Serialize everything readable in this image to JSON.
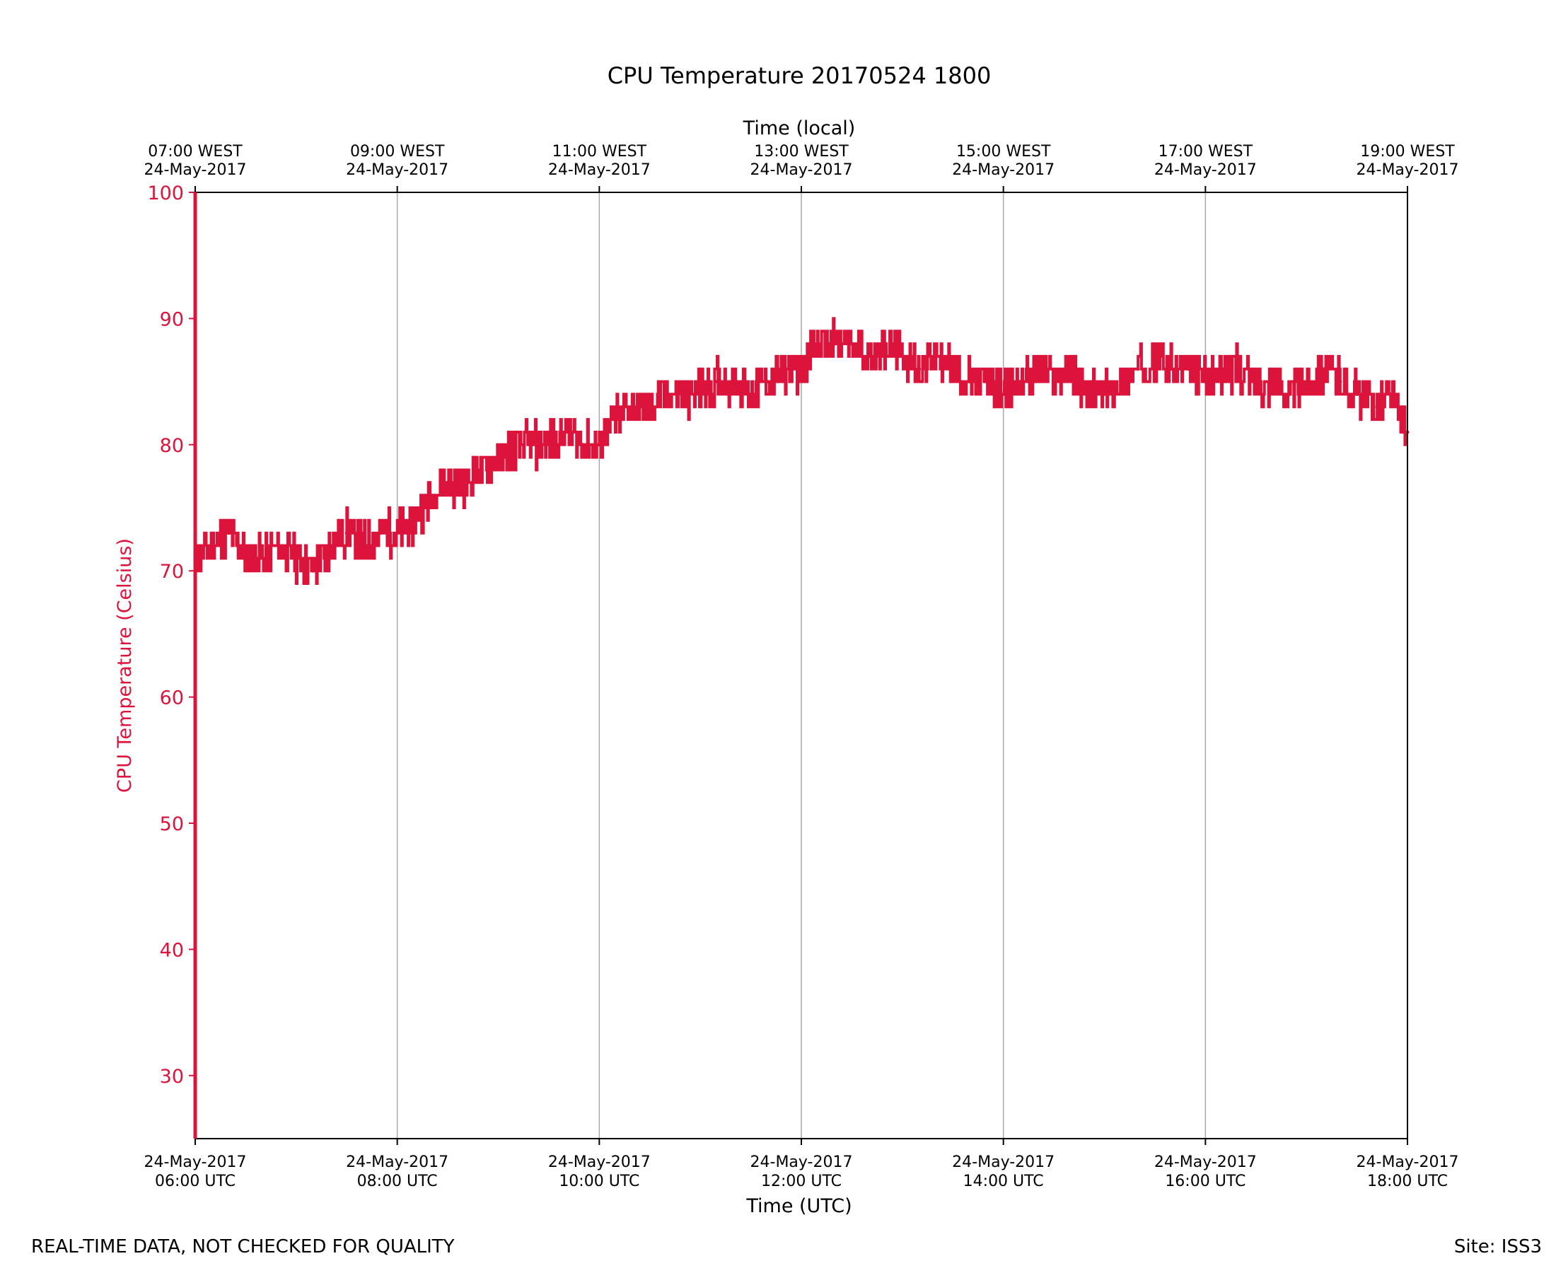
{
  "chart_data": {
    "type": "line",
    "title": "CPU Temperature 20170524 1800",
    "ylabel": "CPU Temperature (Celsius)",
    "xlabel": "Time (UTC)",
    "x2label": "Time (local)",
    "ylim": [
      25,
      100
    ],
    "xlim": [
      "2017-05-24 06:00",
      "2017-05-24 18:00"
    ],
    "yticks": [
      30,
      40,
      50,
      60,
      70,
      80,
      90,
      100
    ],
    "grid": "vertical",
    "xticks_bottom": [
      {
        "date": "24-May-2017",
        "time": "06:00 UTC"
      },
      {
        "date": "24-May-2017",
        "time": "08:00 UTC"
      },
      {
        "date": "24-May-2017",
        "time": "10:00 UTC"
      },
      {
        "date": "24-May-2017",
        "time": "12:00 UTC"
      },
      {
        "date": "24-May-2017",
        "time": "14:00 UTC"
      },
      {
        "date": "24-May-2017",
        "time": "16:00 UTC"
      },
      {
        "date": "24-May-2017",
        "time": "18:00 UTC"
      }
    ],
    "xticks_top": [
      {
        "time": "07:00 WEST",
        "date": "24-May-2017"
      },
      {
        "time": "09:00 WEST",
        "date": "24-May-2017"
      },
      {
        "time": "11:00 WEST",
        "date": "24-May-2017"
      },
      {
        "time": "13:00 WEST",
        "date": "24-May-2017"
      },
      {
        "time": "15:00 WEST",
        "date": "24-May-2017"
      },
      {
        "time": "17:00 WEST",
        "date": "24-May-2017"
      },
      {
        "time": "19:00 WEST",
        "date": "24-May-2017"
      }
    ],
    "series": [
      {
        "color": "#dc143c",
        "x": [
          "06:00",
          "06:10",
          "06:20",
          "06:30",
          "06:40",
          "06:50",
          "07:00",
          "07:10",
          "07:20",
          "07:30",
          "07:40",
          "07:50",
          "08:00",
          "08:10",
          "08:20",
          "08:30",
          "08:40",
          "08:50",
          "09:00",
          "09:10",
          "09:20",
          "09:30",
          "09:40",
          "09:50",
          "10:00",
          "10:10",
          "10:20",
          "10:30",
          "10:40",
          "10:50",
          "11:00",
          "11:10",
          "11:20",
          "11:30",
          "11:40",
          "11:50",
          "12:00",
          "12:10",
          "12:20",
          "12:30",
          "12:40",
          "12:50",
          "13:00",
          "13:10",
          "13:20",
          "13:30",
          "13:40",
          "13:50",
          "14:00",
          "14:10",
          "14:20",
          "14:30",
          "14:40",
          "14:50",
          "15:00",
          "15:10",
          "15:20",
          "15:30",
          "15:40",
          "15:50",
          "16:00",
          "16:10",
          "16:20",
          "16:30",
          "16:40",
          "16:50",
          "17:00",
          "17:10",
          "17:20",
          "17:30",
          "17:40",
          "17:50",
          "18:00"
        ],
        "values": [
          71,
          72,
          73,
          71,
          71,
          72,
          71,
          70,
          72,
          73,
          72,
          73,
          73,
          74,
          76,
          77,
          77,
          78,
          79,
          80,
          80,
          80,
          81,
          80,
          80,
          82,
          83,
          83,
          84,
          84,
          84,
          85,
          85,
          84,
          85,
          86,
          86,
          88,
          88,
          88,
          87,
          88,
          87,
          86,
          87,
          86,
          85,
          85,
          84,
          85,
          86,
          85,
          86,
          84,
          84,
          85,
          86,
          87,
          86,
          86,
          85,
          86,
          86,
          85,
          85,
          84,
          85,
          86,
          85,
          84,
          83,
          84,
          81
        ]
      }
    ]
  },
  "footer": {
    "left": "REAL-TIME DATA, NOT CHECKED FOR QUALITY",
    "right": "Site: ISS3"
  }
}
